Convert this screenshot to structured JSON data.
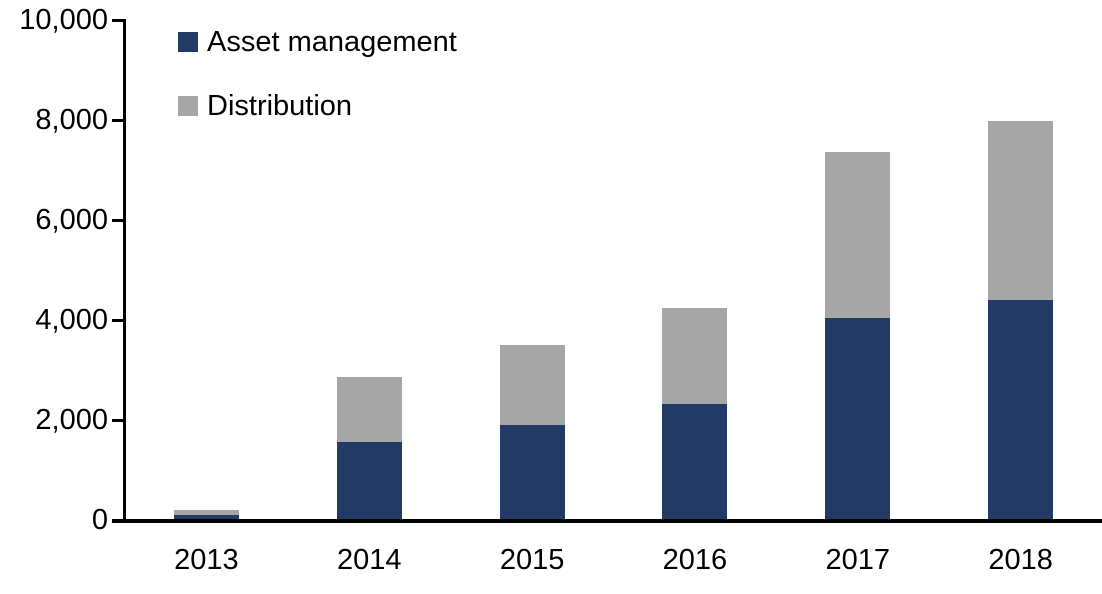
{
  "chart_data": {
    "type": "bar",
    "stacked": true,
    "title": "",
    "xlabel": "",
    "ylabel": "",
    "categories": [
      "2013",
      "2014",
      "2015",
      "2016",
      "2017",
      "2018"
    ],
    "series": [
      {
        "name": "Asset management",
        "color": "#213a66",
        "values": [
          100,
          1560,
          1910,
          2320,
          4050,
          4410
        ]
      },
      {
        "name": "Distribution",
        "color": "#a6a6a6",
        "values": [
          110,
          1310,
          1600,
          1920,
          3310,
          3570
        ]
      }
    ],
    "totals": [
      210,
      2870,
      3510,
      4240,
      7360,
      7980
    ],
    "ylim": [
      0,
      10000
    ],
    "ytick_interval": 2000,
    "ytick_labels": [
      "0",
      "2,000",
      "4,000",
      "6,000",
      "8,000",
      "10,000"
    ],
    "grid": false,
    "legend_position": "top-left",
    "axis_color": "#000000",
    "text_color": "#000000"
  }
}
